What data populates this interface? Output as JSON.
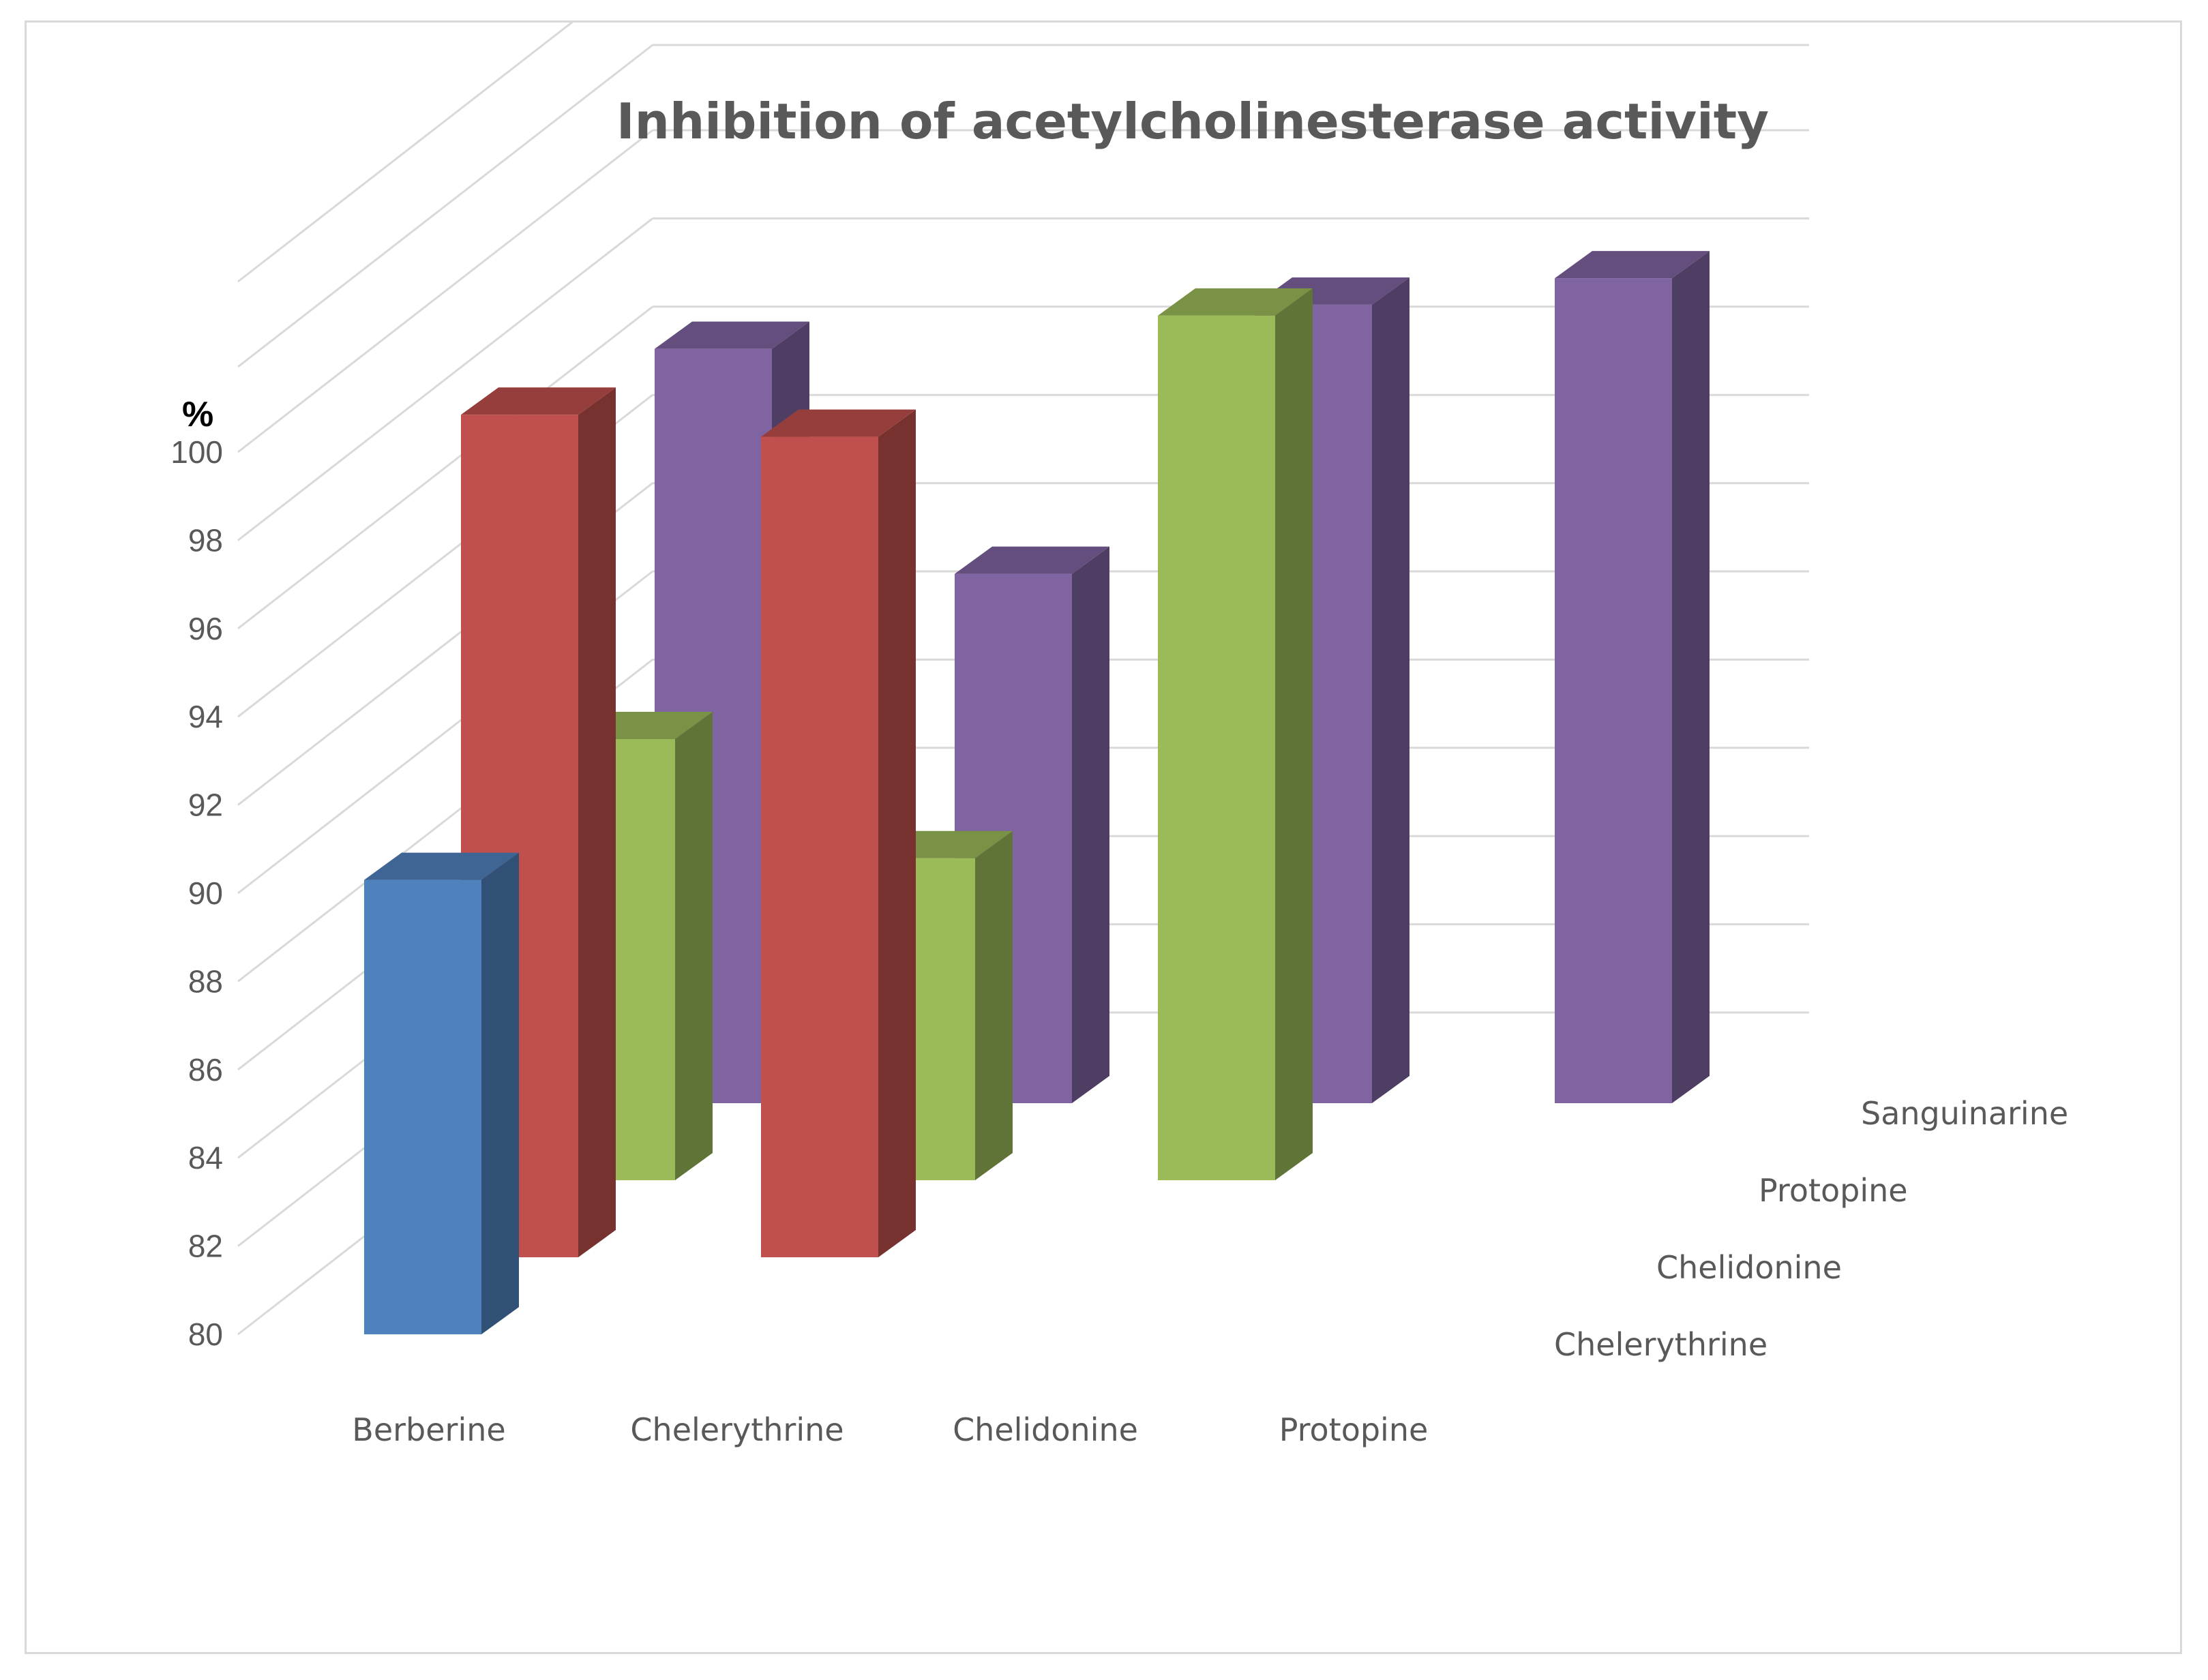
{
  "chart_data": {
    "type": "bar",
    "subtype": "3d-column",
    "title": "Inhibition of acetylcholinesterase activity",
    "ylabel": "%",
    "ylim": [
      80,
      100
    ],
    "yticks": [
      "80",
      "82",
      "84",
      "86",
      "88",
      "90",
      "92",
      "94",
      "96",
      "98",
      "100"
    ],
    "categories": [
      "Berberine",
      "Chelerythrine",
      "Chelidonine",
      "Protopine"
    ],
    "series": [
      {
        "name": "Chelerythrine",
        "color": "#4f81bd",
        "values": [
          90.3,
          null,
          null,
          null
        ]
      },
      {
        "name": "Chelidonine",
        "color": "#c0504d",
        "values": [
          99.1,
          98.6,
          null,
          null
        ]
      },
      {
        "name": "Protopine",
        "color": "#9bbb59",
        "values": [
          90.0,
          87.3,
          99.6,
          null
        ]
      },
      {
        "name": "Sanguinarine",
        "color": "#8064a2",
        "values": [
          97.1,
          92.0,
          98.1,
          98.7
        ]
      }
    ],
    "grid": true,
    "legend": "none"
  }
}
